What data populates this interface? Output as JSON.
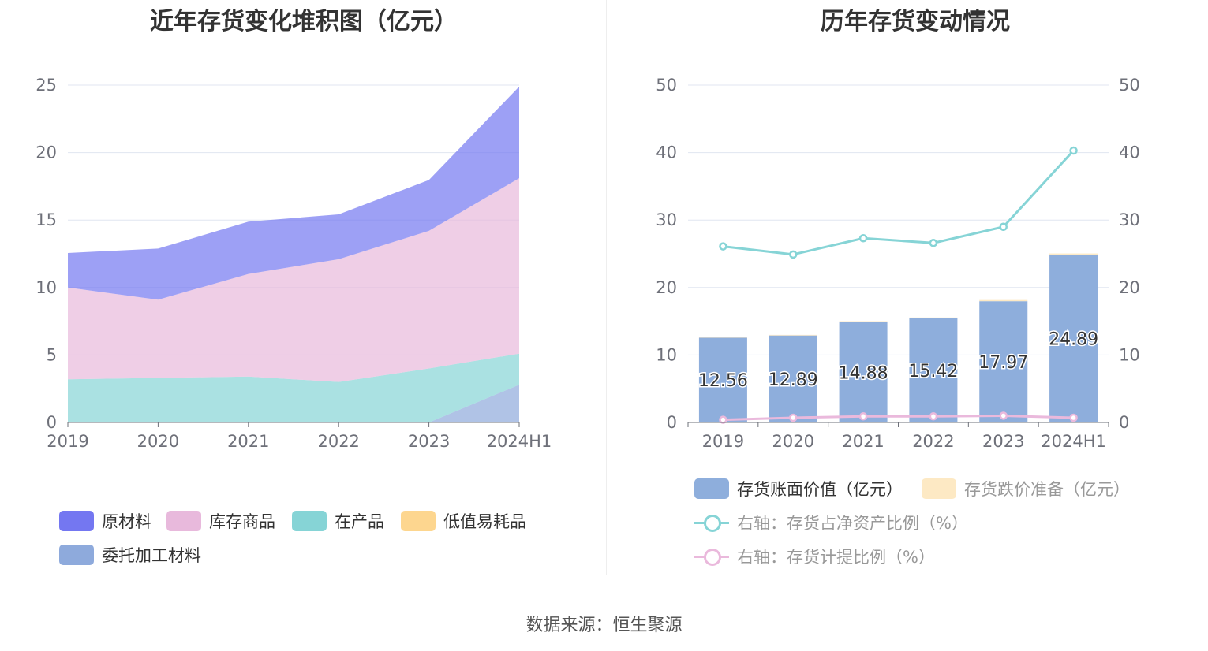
{
  "left_title": "近年存货变化堆积图（亿元）",
  "right_title": "历年存货变动情况",
  "source": "数据来源：恒生聚源",
  "chart_data": [
    {
      "type": "area",
      "stacked": true,
      "title": "近年存货变化堆积图（亿元）",
      "categories": [
        "2019",
        "2020",
        "2021",
        "2022",
        "2023",
        "2024H1"
      ],
      "ylim": [
        0,
        25
      ],
      "yticks": [
        "0",
        "5",
        "10",
        "15",
        "20",
        "25"
      ],
      "grid": true,
      "legend_position": "bottom",
      "series": [
        {
          "name": "委托加工材料",
          "color": "#8eaadc",
          "values": [
            0,
            0,
            0,
            0,
            0,
            2.8
          ]
        },
        {
          "name": "低值易耗品",
          "color": "#fdd68f",
          "values": [
            0,
            0,
            0,
            0,
            0,
            0
          ]
        },
        {
          "name": "在产品",
          "color": "#86d4d6",
          "values": [
            3.2,
            3.3,
            3.4,
            3.0,
            4.0,
            2.3
          ]
        },
        {
          "name": "库存商品",
          "color": "#e8b9dc",
          "values": [
            6.8,
            5.8,
            7.6,
            9.1,
            10.2,
            13.0
          ]
        },
        {
          "name": "原材料",
          "color": "#7477f1",
          "values": [
            2.56,
            3.79,
            3.88,
            3.32,
            3.77,
            6.79
          ]
        }
      ],
      "legend_order": [
        "原材料",
        "库存商品",
        "在产品",
        "低值易耗品",
        "委托加工材料"
      ]
    },
    {
      "type": "bar",
      "title": "历年存货变动情况",
      "categories": [
        "2019",
        "2020",
        "2021",
        "2022",
        "2023",
        "2024H1"
      ],
      "ylim": [
        0,
        50
      ],
      "yticks": [
        "0",
        "10",
        "20",
        "30",
        "40",
        "50"
      ],
      "y2lim": [
        0,
        50
      ],
      "grid": true,
      "legend_position": "bottom",
      "series": [
        {
          "name": "存货账面价值（亿元）",
          "kind": "bar",
          "color": "#8eaedc",
          "values": [
            12.56,
            12.89,
            14.88,
            15.42,
            17.97,
            24.89
          ],
          "labels": [
            "12.56",
            "12.89",
            "14.88",
            "15.42",
            "17.97",
            "24.89"
          ]
        },
        {
          "name": "存货跌价准备（亿元）",
          "kind": "bar",
          "color": "#fde9c4",
          "values": [
            0.05,
            0.09,
            0.13,
            0.14,
            0.18,
            0.16
          ]
        },
        {
          "name": "右轴：存货占净资产比例（%）",
          "kind": "line",
          "axis": "right",
          "color": "#86d4d6",
          "values": [
            26.1,
            24.9,
            27.3,
            26.6,
            29.0,
            40.3
          ]
        },
        {
          "name": "右轴：存货计提比例（%）",
          "kind": "line",
          "axis": "right",
          "color": "#eab9dc",
          "values": [
            0.4,
            0.7,
            0.9,
            0.9,
            1.0,
            0.7
          ]
        }
      ]
    }
  ]
}
